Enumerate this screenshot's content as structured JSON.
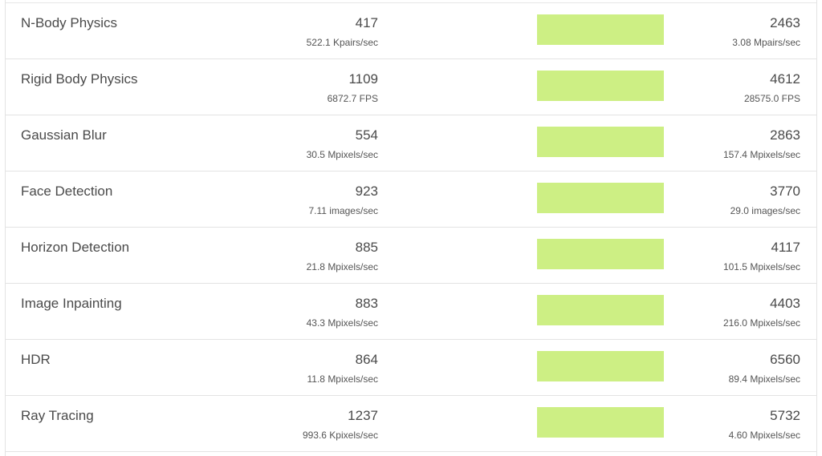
{
  "colors": {
    "bar": "#cdef84",
    "divider": "#e3e3e3",
    "text": "#4a4a4a"
  },
  "rows": [
    {
      "name": "N-Body Physics",
      "single_score": "417",
      "single_rate": "522.1 Kpairs/sec",
      "multi_score": "2463",
      "multi_rate": "3.08 Mpairs/sec"
    },
    {
      "name": "Rigid Body Physics",
      "single_score": "1109",
      "single_rate": "6872.7 FPS",
      "multi_score": "4612",
      "multi_rate": "28575.0 FPS"
    },
    {
      "name": "Gaussian Blur",
      "single_score": "554",
      "single_rate": "30.5 Mpixels/sec",
      "multi_score": "2863",
      "multi_rate": "157.4 Mpixels/sec"
    },
    {
      "name": "Face Detection",
      "single_score": "923",
      "single_rate": "7.11 images/sec",
      "multi_score": "3770",
      "multi_rate": "29.0 images/sec"
    },
    {
      "name": "Horizon Detection",
      "single_score": "885",
      "single_rate": "21.8 Mpixels/sec",
      "multi_score": "4117",
      "multi_rate": "101.5 Mpixels/sec"
    },
    {
      "name": "Image Inpainting",
      "single_score": "883",
      "single_rate": "43.3 Mpixels/sec",
      "multi_score": "4403",
      "multi_rate": "216.0 Mpixels/sec"
    },
    {
      "name": "HDR",
      "single_score": "864",
      "single_rate": "11.8 Mpixels/sec",
      "multi_score": "6560",
      "multi_rate": "89.4 Mpixels/sec"
    },
    {
      "name": "Ray Tracing",
      "single_score": "1237",
      "single_rate": "993.6 Kpixels/sec",
      "multi_score": "5732",
      "multi_rate": "4.60 Mpixels/sec"
    }
  ]
}
